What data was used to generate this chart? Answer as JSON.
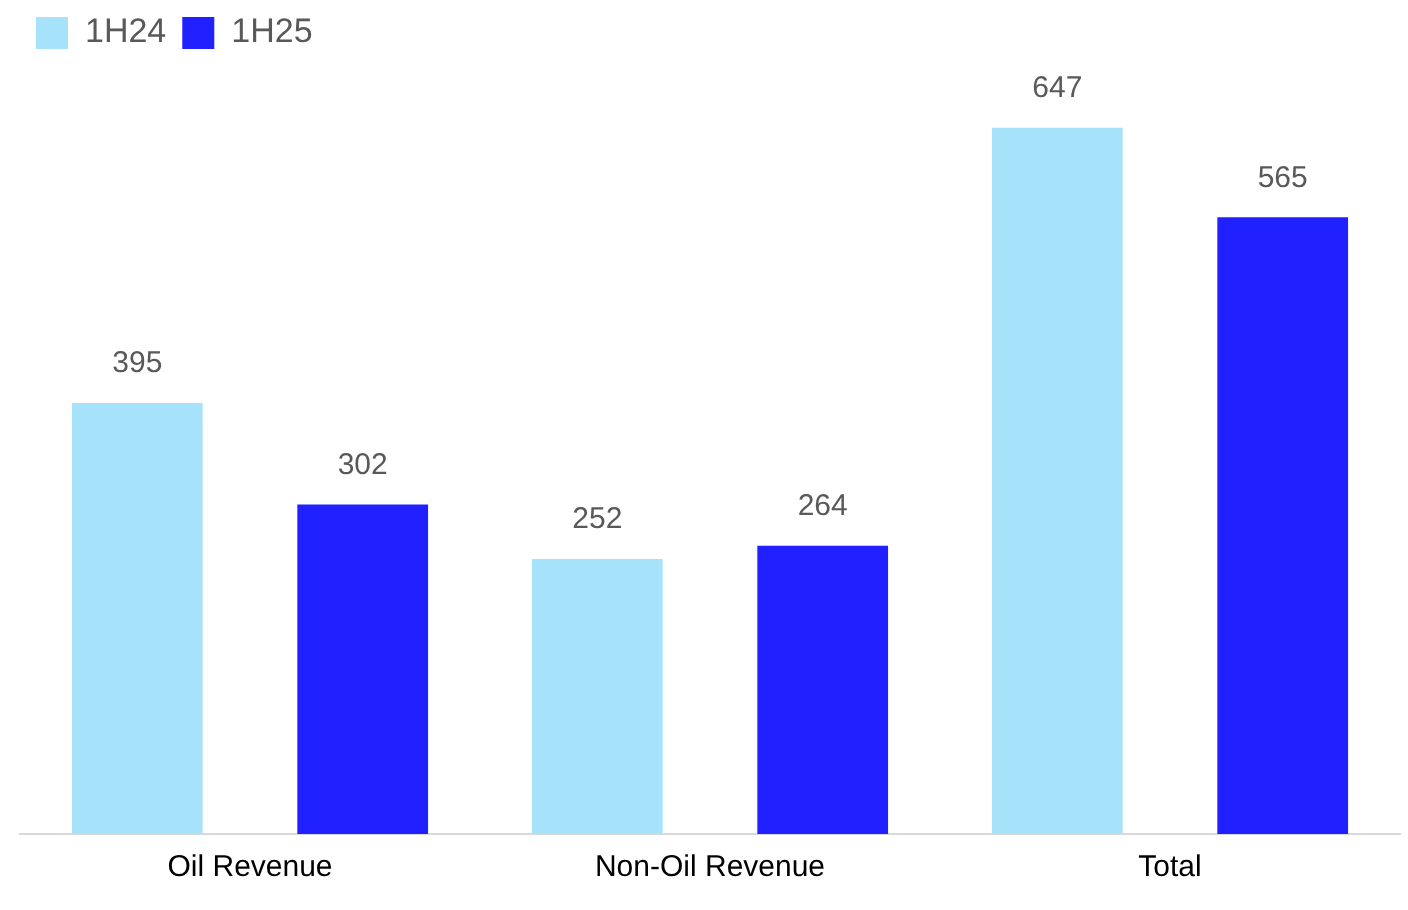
{
  "chart_data": {
    "type": "bar",
    "categories": [
      "Oil Revenue",
      "Non-Oil Revenue",
      "Total"
    ],
    "series": [
      {
        "name": "1H24",
        "color": "#a6e3fb",
        "values": [
          395,
          252,
          647
        ]
      },
      {
        "name": "1H25",
        "color": "#2121ff",
        "values": [
          302,
          264,
          565
        ]
      }
    ],
    "data_labels": true,
    "legend": "top left",
    "grid": false
  }
}
